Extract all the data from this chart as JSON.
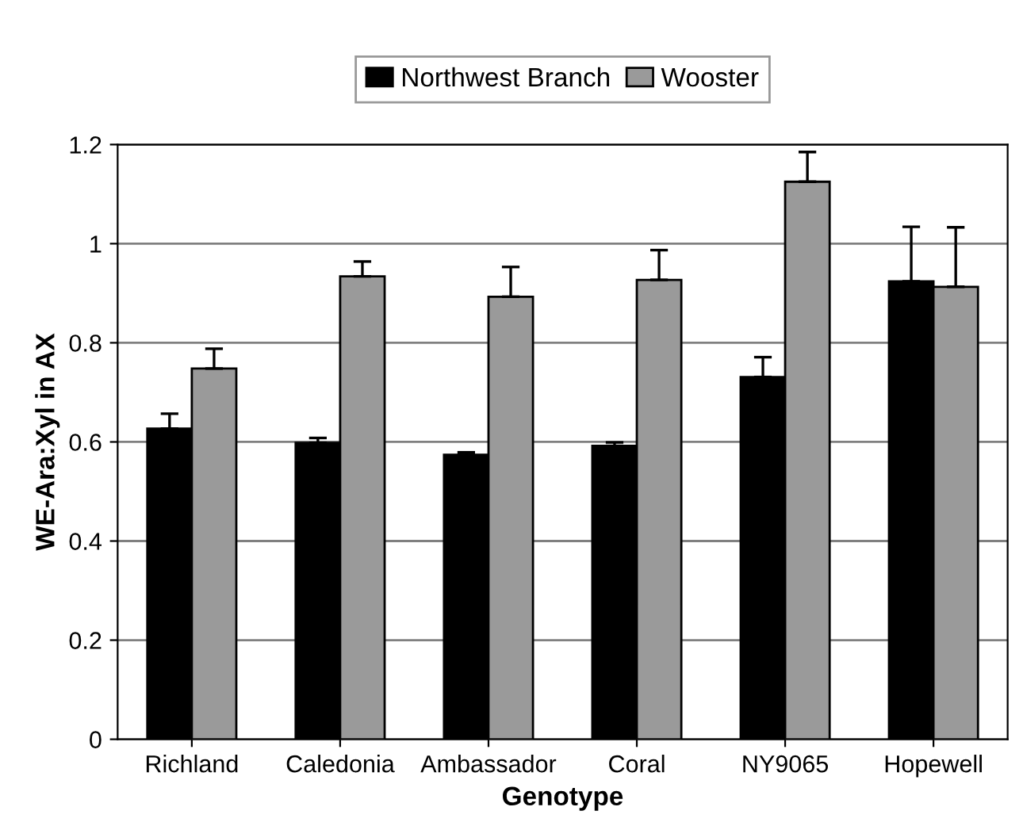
{
  "chart_data": {
    "type": "bar",
    "xlabel": "Genotype",
    "ylabel": "WE-Ara:Xyl in AX",
    "categories": [
      "Richland",
      "Caledonia",
      "Ambassador",
      "Coral",
      "NY9065",
      "Hopewell"
    ],
    "series": [
      {
        "name": "Northwest Branch",
        "color": "#000000",
        "values": [
          0.627,
          0.598,
          0.574,
          0.592,
          0.731,
          0.924
        ],
        "errors": [
          0.03,
          0.01,
          0.005,
          0.007,
          0.04,
          0.11
        ]
      },
      {
        "name": "Wooster",
        "color": "#9a9a9a",
        "values": [
          0.748,
          0.934,
          0.893,
          0.927,
          1.125,
          0.913
        ],
        "errors": [
          0.04,
          0.03,
          0.06,
          0.06,
          0.06,
          0.12
        ]
      }
    ],
    "ylim": [
      0,
      1.2
    ],
    "yticks": [
      0,
      0.2,
      0.4,
      0.6,
      0.8,
      1,
      1.2
    ],
    "grid": "y",
    "legend": "top"
  }
}
